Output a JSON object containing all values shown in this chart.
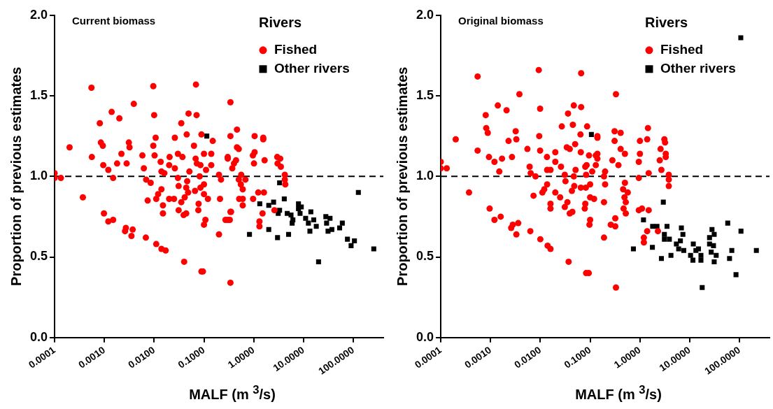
{
  "chart_data": [
    {
      "type": "scatter",
      "title": "Current biomass",
      "xlabel": "MALF (m $^{3}$/s)",
      "ylabel": "Proportion of previous estimates",
      "legend_title": "Rivers",
      "legend": "top right",
      "log": "x",
      "grid": false,
      "xlim": [
        0.0001,
        400
      ],
      "ylim": [
        0,
        2
      ],
      "xticks": [
        {
          "value": 0.0001,
          "label": "0.0001"
        },
        {
          "value": 0.001,
          "label": "0.0010"
        },
        {
          "value": 0.01,
          "label": "0.0100"
        },
        {
          "value": 0.1,
          "label": "0.1000"
        },
        {
          "value": 1,
          "label": "1.0000"
        },
        {
          "value": 10,
          "label": "10.0000"
        },
        {
          "value": 100,
          "label": "100.0000"
        }
      ],
      "yticks": [
        {
          "value": 0,
          "label": "0.0"
        },
        {
          "value": 0.5,
          "label": "0.5"
        },
        {
          "value": 1,
          "label": "1.0"
        },
        {
          "value": 1.5,
          "label": "1.5"
        },
        {
          "value": 2,
          "label": "2.0"
        }
      ],
      "ref_lines": [
        {
          "axis": "y",
          "value": 1,
          "line_style": "dashed",
          "color": "#000000"
        }
      ],
      "series": [
        {
          "name": "Fished",
          "color": "#ff0000",
          "marker": "circle",
          "x": [
            0.00055,
            0.0096,
            0.069,
            0.0039,
            0.0014,
            0.002,
            0.00081,
            0.01,
            0.049,
            0.071,
            0.035,
            0.0002,
            0.00085,
            0.00093,
            0.0031,
            0.0032,
            0.0022,
            0.00056,
            0.00095,
            0.0012,
            0.0018,
            0.0028,
            0.0015,
            0.0001,
            0.0001,
            0.000134,
            0.00037,
            0.00098,
            0.0012,
            0.0015,
            0.0026,
            0.0027,
            0.0037,
            0.0035,
            0.0068,
            0.011,
            0.014,
            0.017,
            0.04,
            0.089,
            0.095,
            0.34,
            0.34,
            0.0058,
            0.0096,
            0.0107,
            0.0102,
            0.0062,
            0.0135,
            0.0204,
            0.02,
            0.026,
            0.045,
            0.089,
            0.15,
            0.063,
            0.03,
            0.037,
            0.068,
            0.1,
            0.14,
            0.14,
            0.085,
            0.072,
            0.3,
            0.37,
            0.0069,
            0.0085,
            0.014,
            0.016,
            0.026,
            0.03,
            0.031,
            0.046,
            0.051,
            0.082,
            0.11,
            0.2,
            0.22,
            0.014,
            0.012,
            0.011,
            0.0074,
            0.015,
            0.015,
            0.02,
            0.025,
            0.035,
            0.031,
            0.039,
            0.044,
            0.041,
            0.048,
            0.044,
            0.066,
            0.085,
            0.1,
            0.1,
            0.12,
            0.078,
            0.077,
            0.107,
            0.1,
            0.2,
            0.21,
            0.27,
            0.34,
            0.34,
            0.46,
            1.04,
            1.55,
            1.55,
            0.46,
            0.5,
            1.04,
            0.96,
            0.3,
            0.44,
            0.4,
            1.01,
            1.65,
            2.96,
            3.4,
            3,
            3.5,
            4.2,
            4.2,
            4.3,
            0.56,
            0.68,
            0.5,
            0.55,
            0.6,
            1.23,
            1.6,
            0.51,
            0.6,
            0.6,
            0.97,
            0.35,
            0.3,
            0.33,
            1.5,
            1.3,
            1.3,
            2.6
          ],
          "values": [
            1.55,
            1.56,
            1.57,
            1.45,
            1.4,
            1.36,
            1.33,
            1.38,
            1.39,
            1.38,
            1.33,
            1.18,
            1.21,
            1.19,
            1.21,
            1.18,
            1.14,
            1.12,
            1.07,
            1.04,
            1.08,
            1.08,
            0.99,
            1.02,
            0.99,
            0.99,
            0.87,
            0.77,
            0.72,
            0.73,
            0.66,
            0.68,
            0.67,
            0.63,
            0.62,
            0.58,
            0.55,
            0.54,
            0.47,
            0.41,
            0.41,
            0.34,
            1.46,
            1.13,
            1.19,
            1.24,
            1.13,
            1.05,
            1.09,
            1.12,
            1.07,
            1.24,
            1.26,
            1.26,
            1.22,
            1.19,
            1.14,
            1.12,
            1.11,
            1.14,
            1.14,
            1.07,
            1.07,
            1.08,
            1.11,
            1.05,
            0.98,
            0.96,
            1.03,
            1.02,
            1.05,
            0.99,
            0.94,
            0.97,
            1.03,
            1,
            1.04,
            1.01,
            0.98,
            0.92,
            0.89,
            0.86,
            0.85,
            0.82,
            0.77,
            0.86,
            0.86,
            0.84,
            0.79,
            0.76,
            0.77,
            0.87,
            0.9,
            0.93,
            0.91,
            0.93,
            0.95,
            0.89,
            0.86,
            0.83,
            0.79,
            0.73,
            0.7,
            0.64,
            0.86,
            0.73,
            0.78,
            1.25,
            1.29,
            1.25,
            1.24,
            1.23,
            1.18,
            1.17,
            1.15,
            1.13,
            1.12,
            1.1,
            1.08,
            1.08,
            1.1,
            1.12,
            1.11,
            1.08,
            1.06,
            1.01,
            0.98,
            0.95,
            1.01,
            0.98,
            0.98,
            0.95,
            0.92,
            0.9,
            0.9,
            0.86,
            0.86,
            0.82,
            0.86,
            0.78,
            0.73,
            0.73,
            0.77,
            0.72,
            0.69,
            0.79
          ]
        },
        {
          "name": "Other rivers",
          "color": "#000000",
          "marker": "square",
          "x": [
            0.114,
            3.3,
            126,
            1.32,
            0.82,
            2,
            3,
            5,
            4.1,
            2,
            2.5,
            3.1,
            3.3,
            4.7,
            5.6,
            6.1,
            5.9,
            7.9,
            9,
            7.9,
            8.5,
            14,
            11,
            12.5,
            13.4,
            16,
            18,
            28,
            34,
            29,
            31,
            37,
            53,
            60,
            76,
            90,
            105,
            257,
            20
          ],
          "values": [
            1.25,
            0.96,
            0.9,
            0.83,
            0.64,
            0.67,
            0.62,
            0.64,
            0.86,
            0.82,
            0.84,
            0.77,
            0.79,
            0.77,
            0.76,
            0.73,
            0.71,
            0.83,
            0.81,
            0.8,
            0.77,
            0.78,
            0.74,
            0.71,
            0.66,
            0.73,
            0.69,
            0.75,
            0.74,
            0.71,
            0.66,
            0.67,
            0.68,
            0.71,
            0.61,
            0.57,
            0.6,
            0.55,
            0.47
          ]
        }
      ]
    },
    {
      "type": "scatter",
      "title": "Original biomass",
      "xlabel": "MALF (m $^{3}$/s)",
      "ylabel": "Proportion of previous estimates",
      "legend_title": "Rivers",
      "legend": "top right",
      "log": "x",
      "grid": false,
      "xlim": [
        0.0001,
        400
      ],
      "ylim": [
        0,
        2
      ],
      "xticks": [
        {
          "value": 0.0001,
          "label": "0.0001"
        },
        {
          "value": 0.001,
          "label": "0.0010"
        },
        {
          "value": 0.01,
          "label": "0.0100"
        },
        {
          "value": 0.1,
          "label": "0.1000"
        },
        {
          "value": 1,
          "label": "1.0000"
        },
        {
          "value": 10,
          "label": "10.0000"
        },
        {
          "value": 100,
          "label": "100.0000"
        }
      ],
      "yticks": [
        {
          "value": 0,
          "label": "0.0"
        },
        {
          "value": 0.5,
          "label": "0.5"
        },
        {
          "value": 1,
          "label": "1.0"
        },
        {
          "value": 1.5,
          "label": "1.5"
        },
        {
          "value": 2,
          "label": "2.0"
        }
      ],
      "ref_lines": [
        {
          "axis": "y",
          "value": 1,
          "line_style": "dashed",
          "color": "#000000"
        }
      ],
      "series": [
        {
          "name": "Fished",
          "color": "#ff0000",
          "marker": "circle",
          "x": [
            0.00055,
            0.0093,
            0.066,
            0.0038,
            0.0014,
            0.0021,
            0.0008,
            0.0099,
            0.047,
            0.066,
            0.036,
            0.0002,
            0.00082,
            0.00088,
            0.0032,
            0.0033,
            0.0023,
            0.00055,
            0.00093,
            0.0012,
            0.0017,
            0.0027,
            0.0015,
            0.0001,
            0.0001,
            0.000132,
            0.00037,
            0.00096,
            0.0012,
            0.0016,
            0.0026,
            0.0028,
            0.0036,
            0.0033,
            0.0063,
            0.01,
            0.014,
            0.016,
            0.037,
            0.083,
            0.094,
            0.0055,
            0.0095,
            0.0099,
            0.0061,
            0.0136,
            0.02,
            0.02,
            0.027,
            0.045,
            0.087,
            0.14,
            0.064,
            0.034,
            0.039,
            0.05,
            0.065,
            0.095,
            0.13,
            0.13,
            0.085,
            0.08,
            0.0064,
            0.008,
            0.0137,
            0.016,
            0.026,
            0.031,
            0.047,
            0.051,
            0.083,
            0.11,
            0.0137,
            0.012,
            0.011,
            0.0073,
            0.016,
            0.016,
            0.02,
            0.025,
            0.035,
            0.031,
            0.039,
            0.044,
            0.043,
            0.048,
            0.032,
            0.065,
            0.082,
            0.1,
            0.1,
            0.12,
            0.08,
            0.078,
            0.1,
            0.097,
            0.33,
            0.14,
            0.31,
            0.41,
            0.31,
            1.45,
            1,
            1.4,
            3.1,
            3.2,
            2.6,
            0.41,
            0.5,
            0.14,
            0.14,
            0.28,
            0.37,
            1,
            0.95,
            3.3,
            3.3,
            2.5,
            2.7,
            1.5,
            0.2,
            0.19,
            0.95,
            3.8,
            3.8,
            3.8,
            0.2,
            0.5,
            0.46,
            0.57,
            0.49,
            0.52,
            0.19,
            0.47,
            0.52,
            0.95,
            1.1,
            1.5,
            0.32,
            0.26,
            0.32,
            1.4,
            2.3,
            1.2,
            1.2,
            0.19,
            0.33
          ],
          "values": [
            1.62,
            1.66,
            1.64,
            1.51,
            1.44,
            1.41,
            1.38,
            1.42,
            1.44,
            1.43,
            1.39,
            1.23,
            1.3,
            1.27,
            1.28,
            1.23,
            1.22,
            1.16,
            1.12,
            1.09,
            1.11,
            1.12,
            1.03,
            1.09,
            1.05,
            1.05,
            0.9,
            0.8,
            0.73,
            0.75,
            0.68,
            0.7,
            0.71,
            0.64,
            0.66,
            0.61,
            0.57,
            0.55,
            0.47,
            0.4,
            0.4,
            1.17,
            1.25,
            1.16,
            1.06,
            1.12,
            1.15,
            1.09,
            1.31,
            1.32,
            1.31,
            1.25,
            1.26,
            1.18,
            1.17,
            1.2,
            1.15,
            1.13,
            1.13,
            1.07,
            1.07,
            1.06,
            1.02,
            1,
            1.04,
            1.04,
            1.06,
            1.01,
            1,
            1.04,
            1.01,
            1.03,
            0.95,
            0.92,
            0.9,
            0.88,
            0.83,
            0.8,
            0.9,
            0.87,
            0.84,
            0.81,
            0.77,
            0.78,
            0.91,
            0.94,
            0.97,
            0.93,
            0.93,
            0.95,
            0.87,
            0.86,
            0.83,
            0.8,
            0.73,
            0.7,
            1.51,
            1.24,
            1.28,
            1.27,
            1.22,
            1.3,
            1.22,
            1.23,
            1.23,
            1.21,
            1.17,
            1.17,
            1.14,
            1.14,
            1.11,
            1.1,
            1.07,
            1.14,
            1.09,
            1.14,
            1.12,
            1.1,
            1.04,
            1.02,
            1.03,
            1,
            0.99,
            1.01,
            0.98,
            0.94,
            0.95,
            0.96,
            0.92,
            0.9,
            0.87,
            0.84,
            0.84,
            0.8,
            0.77,
            0.79,
            0.8,
            0.79,
            0.74,
            0.7,
            0.69,
            0.66,
            0.66,
            0.62,
            0.59,
            0.62,
            0.31
          ]
        },
        {
          "name": "Other rivers",
          "color": "#000000",
          "marker": "square",
          "x": [
            0.106,
            106,
            2.95,
            1.18,
            0.74,
            1.78,
            2.7,
            1.8,
            2.2,
            3.5,
            3.1,
            3.1,
            3.9,
            4.2,
            6.8,
            7.3,
            6.5,
            6,
            5.4,
            7.6,
            11.8,
            13.3,
            10.4,
            11.6,
            15,
            16.8,
            16.8,
            17.8,
            25,
            28,
            31,
            25,
            30,
            27,
            31,
            34,
            63,
            70,
            58,
            107,
            218,
            85
          ],
          "values": [
            1.26,
            1.86,
            0.84,
            0.73,
            0.55,
            0.56,
            0.49,
            0.69,
            0.69,
            0.69,
            0.64,
            0.61,
            0.61,
            0.51,
            0.68,
            0.64,
            0.6,
            0.55,
            0.58,
            0.54,
            0.58,
            0.54,
            0.51,
            0.48,
            0.55,
            0.51,
            0.48,
            0.31,
            0.62,
            0.67,
            0.64,
            0.58,
            0.57,
            0.53,
            0.47,
            0.51,
            0.49,
            0.54,
            0.71,
            0.66,
            0.54,
            0.39
          ]
        }
      ]
    }
  ]
}
